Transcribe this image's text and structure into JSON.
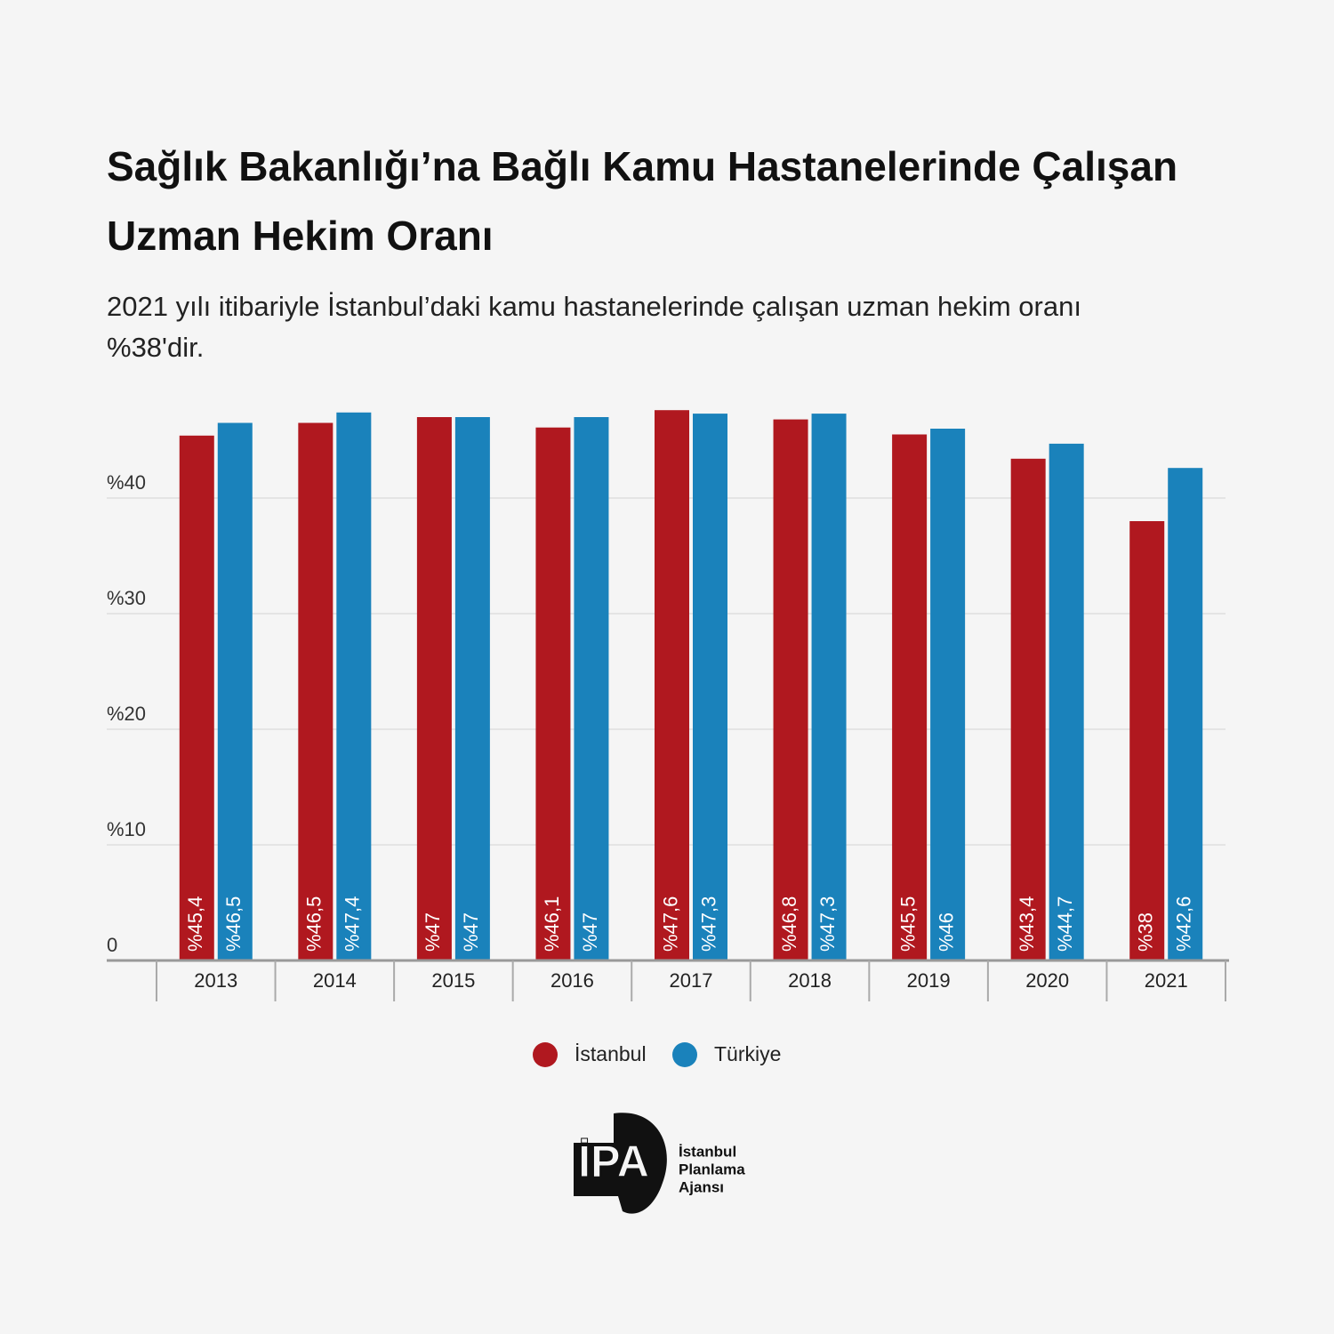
{
  "chart_data": {
    "type": "bar",
    "title": "Sağlık Bakanlığı’na Bağlı Kamu Hastanelerinde Çalışan Uzman Hekim Oranı",
    "subtitle": "2021 yılı itibariyle İstanbul’daki kamu hastanelerinde çalışan uzman hekim oranı %38'dir.",
    "categories": [
      "2013",
      "2014",
      "2015",
      "2016",
      "2017",
      "2018",
      "2019",
      "2020",
      "2021"
    ],
    "series": [
      {
        "name": "İstanbul",
        "color": "#b0181f",
        "values": [
          45.4,
          46.5,
          47,
          46.1,
          47.6,
          46.8,
          45.5,
          43.4,
          38
        ],
        "value_labels": [
          "%45,4",
          "%46,5",
          "%47",
          "%46,1",
          "%47,6",
          "%46,8",
          "%45,5",
          "%43,4",
          "%38"
        ]
      },
      {
        "name": "Türkiye",
        "color": "#1a82bb",
        "values": [
          46.5,
          47.4,
          47,
          47,
          47.3,
          47.3,
          46,
          44.7,
          42.6
        ],
        "value_labels": [
          "%46,5",
          "%47,4",
          "%47",
          "%47",
          "%47,3",
          "%47,3",
          "%46",
          "%44,7",
          "%42,6"
        ]
      }
    ],
    "ylim": [
      0,
      48
    ],
    "yticks": [
      0,
      {
        "value": 10,
        "label": "%10"
      },
      {
        "value": 20,
        "label": "%20"
      },
      {
        "value": 30,
        "label": "%30"
      },
      {
        "value": 40,
        "label": "%40"
      }
    ],
    "grid": true,
    "legend": "bottom"
  },
  "logo": {
    "mark": "İPA",
    "lines": [
      "İstanbul",
      "Planlama",
      "Ajansı"
    ]
  }
}
